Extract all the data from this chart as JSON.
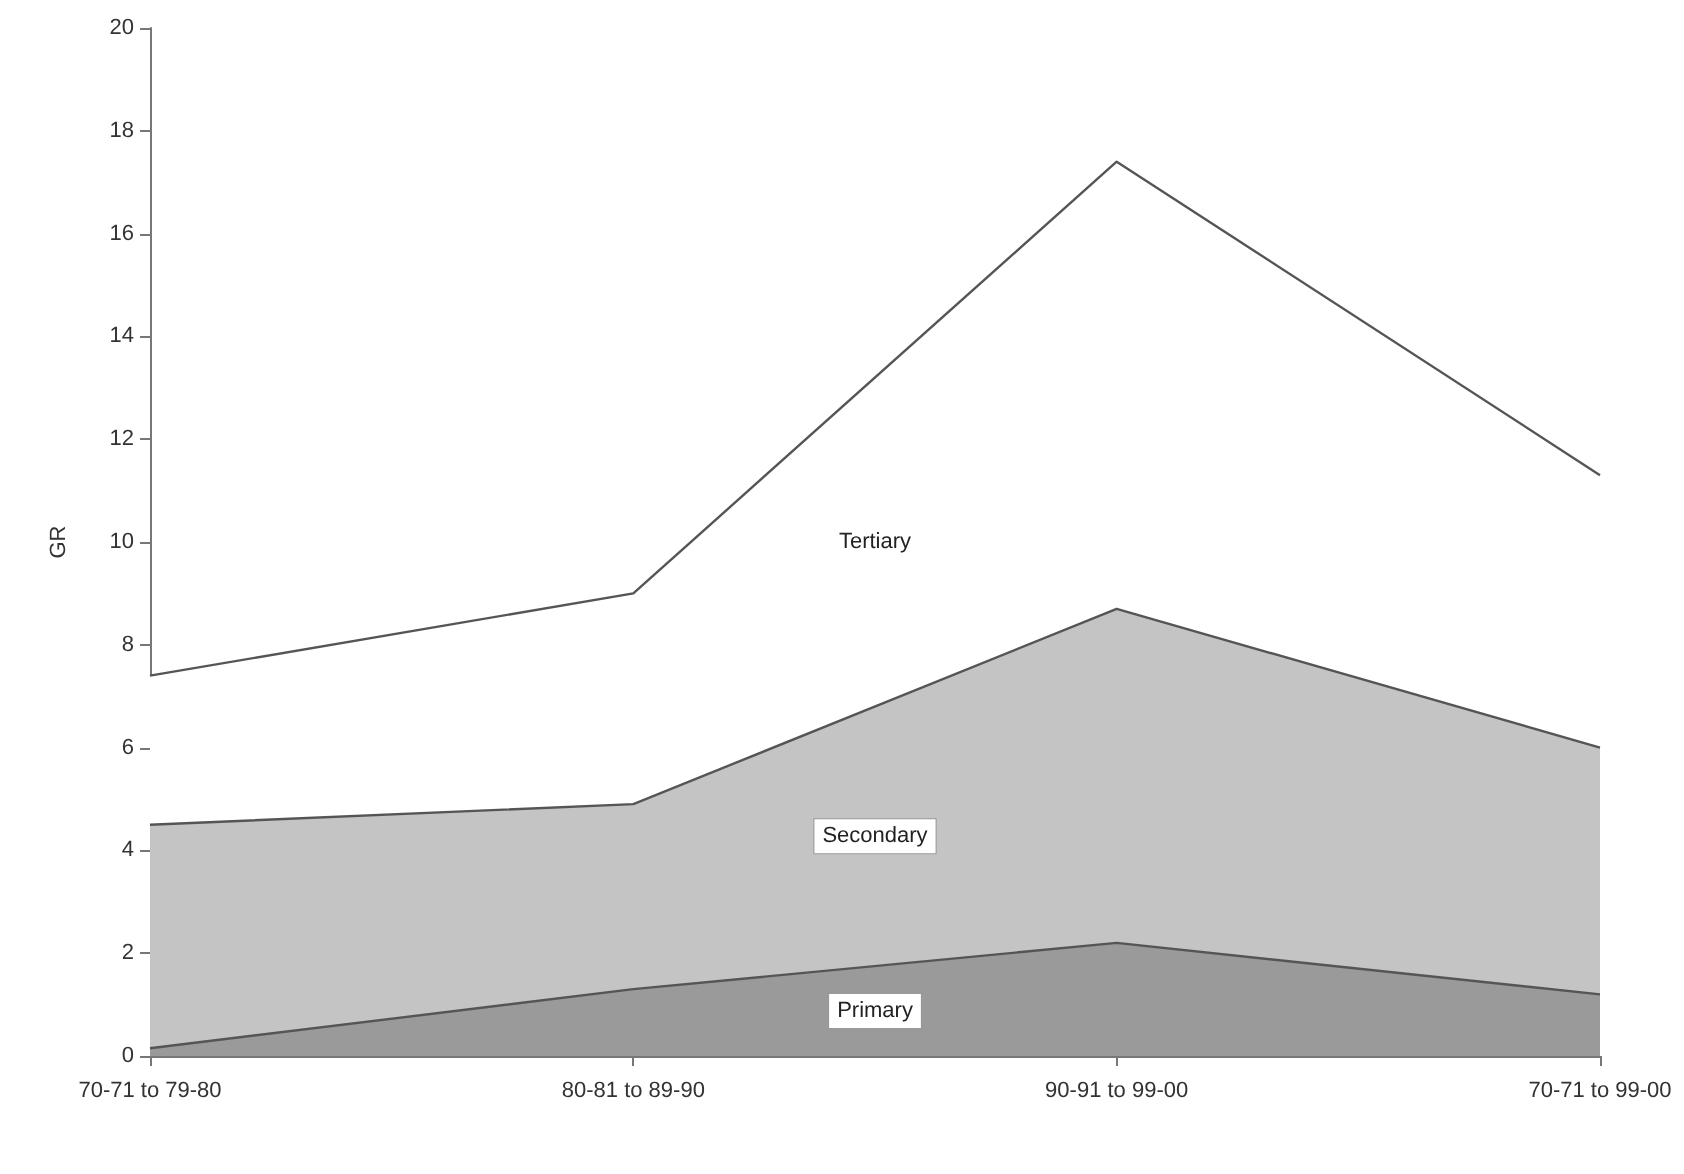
{
  "chart_data": {
    "type": "area",
    "ylabel": "GR",
    "categories": [
      "70-71 to 79-80",
      "80-81 to 89-90",
      "90-91 to 99-00",
      "70-71 to 99-00"
    ],
    "series": [
      {
        "name": "Tertiary",
        "color": "#ffffff",
        "values": [
          7.4,
          9.0,
          17.4,
          11.3
        ]
      },
      {
        "name": "Secondary",
        "color": "#c4c4c4",
        "values": [
          4.5,
          4.9,
          8.7,
          6.0
        ]
      },
      {
        "name": "Primary",
        "color": "#9a9a9a",
        "values": [
          0.15,
          1.3,
          2.2,
          1.2
        ]
      }
    ],
    "ylim": [
      0,
      20
    ],
    "yticks": [
      0,
      2,
      4,
      6,
      8,
      10,
      12,
      14,
      16,
      18,
      20
    ],
    "grid": false,
    "legend": false,
    "marker": "none"
  }
}
